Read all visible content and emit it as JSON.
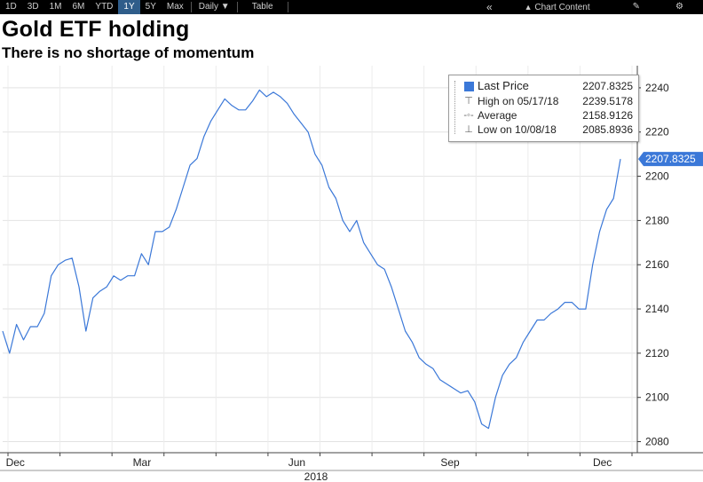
{
  "toolbar": {
    "ranges": [
      "1D",
      "3D",
      "1M",
      "6M",
      "YTD",
      "1Y",
      "5Y",
      "Max"
    ],
    "active_range": "1Y",
    "frequency": "Daily",
    "table_label": "Table",
    "chart_content_label": "Chart Content",
    "icons": [
      "collapse-icon",
      "chart-content-icon",
      "edit-icon",
      "gear-icon"
    ]
  },
  "header": {
    "title": "Gold ETF holding",
    "subtitle": "There is no shortage of momentum"
  },
  "legend": {
    "last_price_label": "Last Price",
    "last_price_value": "2207.8325",
    "high_label": "High on 05/17/18",
    "high_value": "2239.5178",
    "average_label": "Average",
    "average_value": "2158.9126",
    "low_label": "Low on 10/08/18",
    "low_value": "2085.8936"
  },
  "chart_data": {
    "type": "line",
    "title": "Gold ETF holding",
    "subtitle": "There is no shortage of momentum",
    "series": [
      {
        "name": "Last Price",
        "color": "#3b78d8",
        "values": [
          2130,
          2120,
          2133,
          2126,
          2132,
          2132,
          2138,
          2155,
          2160,
          2162,
          2163,
          2150,
          2130,
          2145,
          2148,
          2150,
          2155,
          2153,
          2155,
          2155,
          2165,
          2160,
          2175,
          2175,
          2177,
          2185,
          2195,
          2205,
          2208,
          2218,
          2225,
          2230,
          2235,
          2232,
          2230,
          2230,
          2234,
          2239,
          2236,
          2238,
          2236,
          2233,
          2228,
          2224,
          2220,
          2210,
          2205,
          2195,
          2190,
          2180,
          2175,
          2180,
          2170,
          2165,
          2160,
          2158,
          2150,
          2140,
          2130,
          2125,
          2118,
          2115,
          2113,
          2108,
          2106,
          2104,
          2102,
          2103,
          2098,
          2088,
          2086,
          2100,
          2110,
          2115,
          2118,
          2125,
          2130,
          2135,
          2135,
          2138,
          2140,
          2143,
          2143,
          2140,
          2140,
          2160,
          2175,
          2185,
          2190,
          2207.83
        ]
      }
    ],
    "x_labels": [
      "Dec",
      "Mar",
      "Jun",
      "Sep",
      "Dec"
    ],
    "year_label": "2018",
    "y_ticks": [
      2080,
      2100,
      2120,
      2140,
      2160,
      2180,
      2200,
      2220,
      2240
    ],
    "ylim": [
      2075,
      2250
    ],
    "last_value_tag": "2207.8325",
    "grid": true,
    "legend_position": "top-right"
  }
}
